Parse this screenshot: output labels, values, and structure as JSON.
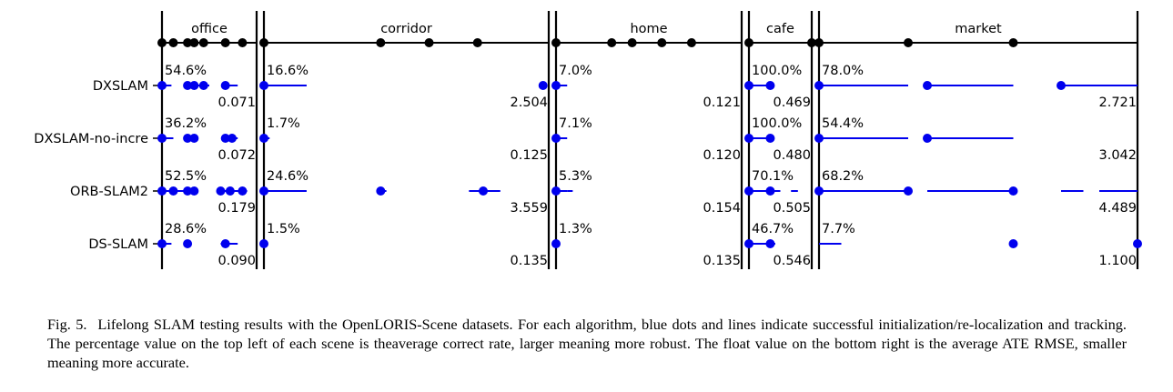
{
  "chart_data": {
    "type": "scatter",
    "title": "",
    "scenes": [
      {
        "name": "office",
        "sequences": 7
      },
      {
        "name": "corridor",
        "sequences": 5
      },
      {
        "name": "home",
        "sequences": 5
      },
      {
        "name": "cafe",
        "sequences": 2
      },
      {
        "name": "market",
        "sequences": 3
      }
    ],
    "algorithms": [
      "DXSLAM",
      "DXSLAM-no-incre",
      "ORB-SLAM2",
      "DS-SLAM"
    ],
    "correct_rate_labels": [
      [
        "54.6%",
        "16.6%",
        "7.0%",
        "100.0%",
        "78.0%"
      ],
      [
        "36.2%",
        "1.7%",
        "7.1%",
        "100.0%",
        "54.4%"
      ],
      [
        "52.5%",
        "24.6%",
        "5.3%",
        "70.1%",
        "68.2%"
      ],
      [
        "28.6%",
        "1.5%",
        "1.3%",
        "46.7%",
        "7.7%"
      ]
    ],
    "ate_rmse_labels": [
      [
        "0.071",
        "2.504",
        "0.121",
        "0.469",
        "2.721"
      ],
      [
        "0.072",
        "0.125",
        "0.120",
        "0.480",
        "3.042"
      ],
      [
        "0.179",
        "3.559",
        "0.154",
        "0.505",
        "4.489"
      ],
      [
        "0.090",
        "0.135",
        "0.135",
        "0.546",
        "1.100"
      ]
    ],
    "sequence_boundaries": [
      [
        0.0,
        0.12,
        0.27,
        0.34,
        0.44,
        0.67,
        0.85
      ],
      [
        0.0,
        0.41,
        0.58,
        0.75
      ],
      [
        0.0,
        0.3,
        0.41,
        0.57,
        0.73
      ],
      [
        0.0,
        1.0
      ],
      [
        0.0,
        0.28,
        0.61
      ]
    ],
    "tracking": [
      {
        "dots": [
          [
            0,
            0.0
          ],
          [
            0,
            0.27
          ],
          [
            0,
            0.34
          ],
          [
            0,
            0.44
          ],
          [
            0,
            0.67
          ],
          [
            1,
            0.0
          ],
          [
            1,
            0.98
          ],
          [
            2,
            0.0
          ],
          [
            3,
            0.0
          ],
          [
            3,
            0.34
          ],
          [
            4,
            0.0
          ],
          [
            4,
            0.34
          ],
          [
            4,
            0.76
          ]
        ],
        "lines": [
          [
            0,
            0.0,
            0.1
          ],
          [
            0,
            0.27,
            0.5
          ],
          [
            0,
            0.67,
            0.8
          ],
          [
            1,
            0.0,
            0.15
          ],
          [
            2,
            0.0,
            0.06
          ],
          [
            3,
            0.0,
            0.34
          ],
          [
            4,
            0.0,
            0.28
          ],
          [
            4,
            0.34,
            0.61
          ],
          [
            4,
            0.76,
            1.0
          ]
        ]
      },
      {
        "dots": [
          [
            0,
            0.0
          ],
          [
            0,
            0.27
          ],
          [
            0,
            0.34
          ],
          [
            0,
            0.67
          ],
          [
            0,
            0.74
          ],
          [
            1,
            0.0
          ],
          [
            2,
            0.0
          ],
          [
            3,
            0.0
          ],
          [
            3,
            0.34
          ],
          [
            4,
            0.0
          ],
          [
            4,
            0.34
          ]
        ],
        "lines": [
          [
            0,
            0.0,
            0.12
          ],
          [
            0,
            0.27,
            0.38
          ],
          [
            0,
            0.67,
            0.8
          ],
          [
            1,
            0.0,
            0.02
          ],
          [
            2,
            0.0,
            0.06
          ],
          [
            3,
            0.0,
            0.34
          ],
          [
            4,
            0.0,
            0.28
          ],
          [
            4,
            0.34,
            0.61
          ]
        ]
      },
      {
        "dots": [
          [
            0,
            0.0
          ],
          [
            0,
            0.12
          ],
          [
            0,
            0.27
          ],
          [
            0,
            0.34
          ],
          [
            0,
            0.62
          ],
          [
            0,
            0.72
          ],
          [
            0,
            0.85
          ],
          [
            1,
            0.0
          ],
          [
            1,
            0.41
          ],
          [
            1,
            0.77
          ],
          [
            2,
            0.0
          ],
          [
            3,
            0.0
          ],
          [
            3,
            0.34
          ],
          [
            4,
            0.0
          ],
          [
            4,
            0.28
          ],
          [
            4,
            0.61
          ]
        ],
        "lines": [
          [
            0,
            0.0,
            0.35
          ],
          [
            0,
            0.62,
            0.9
          ],
          [
            1,
            0.0,
            0.15
          ],
          [
            1,
            0.41,
            0.43
          ],
          [
            1,
            0.72,
            0.83
          ],
          [
            2,
            0.0,
            0.06
          ],
          [
            2,
            0.06,
            0.09
          ],
          [
            3,
            0.0,
            0.5
          ],
          [
            3,
            0.67,
            0.78
          ],
          [
            4,
            0.0,
            0.28
          ],
          [
            4,
            0.34,
            0.61
          ],
          [
            4,
            0.76,
            0.83
          ],
          [
            4,
            0.88,
            1.0
          ]
        ]
      },
      {
        "dots": [
          [
            0,
            0.0
          ],
          [
            0,
            0.27
          ],
          [
            0,
            0.67
          ],
          [
            1,
            0.0
          ],
          [
            2,
            0.0
          ],
          [
            3,
            0.0
          ],
          [
            3,
            0.34
          ],
          [
            4,
            0.61
          ],
          [
            4,
            1.0
          ]
        ],
        "lines": [
          [
            0,
            0.0,
            0.1
          ],
          [
            0,
            0.62,
            0.8
          ],
          [
            3,
            0.0,
            0.42
          ],
          [
            4,
            0.0,
            0.07
          ]
        ]
      }
    ]
  },
  "caption": {
    "fig_number": "Fig. 5.",
    "text": "Lifelong SLAM testing results with the OpenLORIS-Scene datasets. For each algorithm, blue dots and lines indicate successful initialization/re-localization and tracking. The percentage value on the top left of each scene is theaverage correct rate, larger meaning more robust. The float value on the bottom right is the average ATE RMSE, smaller meaning more accurate."
  },
  "colors": {
    "tracking": "#0000ee",
    "axis": "#000000"
  }
}
